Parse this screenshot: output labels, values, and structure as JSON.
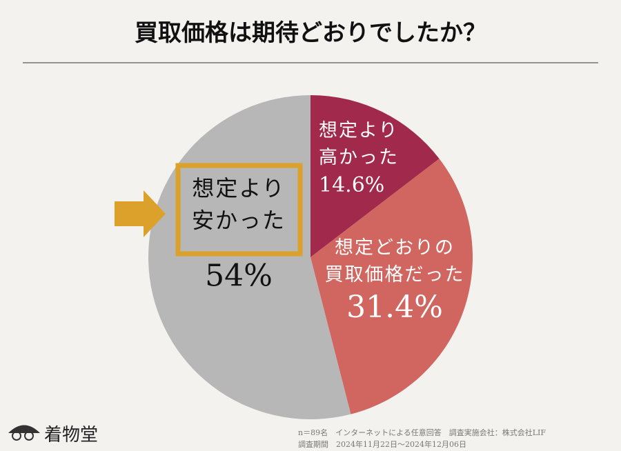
{
  "chart_data": {
    "type": "pie",
    "title": "買取価格は期待どおりでしたか？",
    "categories": [
      "想定より\n高かった",
      "想定どおりの\n買取価格だった",
      "想定より\n安かった"
    ],
    "values": [
      14.6,
      31.4,
      54
    ],
    "value_labels": [
      "14.6%",
      "31.4%",
      "54%"
    ],
    "colors": [
      "#a1294b",
      "#d0665f",
      "#b7b7b7"
    ]
  },
  "footer": {
    "brand": "着物堂",
    "note": "n＝89名　インターネットによる任意回答　調査実施会社：株式会社LIF",
    "period": "調査期間　2024年11月22日～2024年12月06日"
  }
}
